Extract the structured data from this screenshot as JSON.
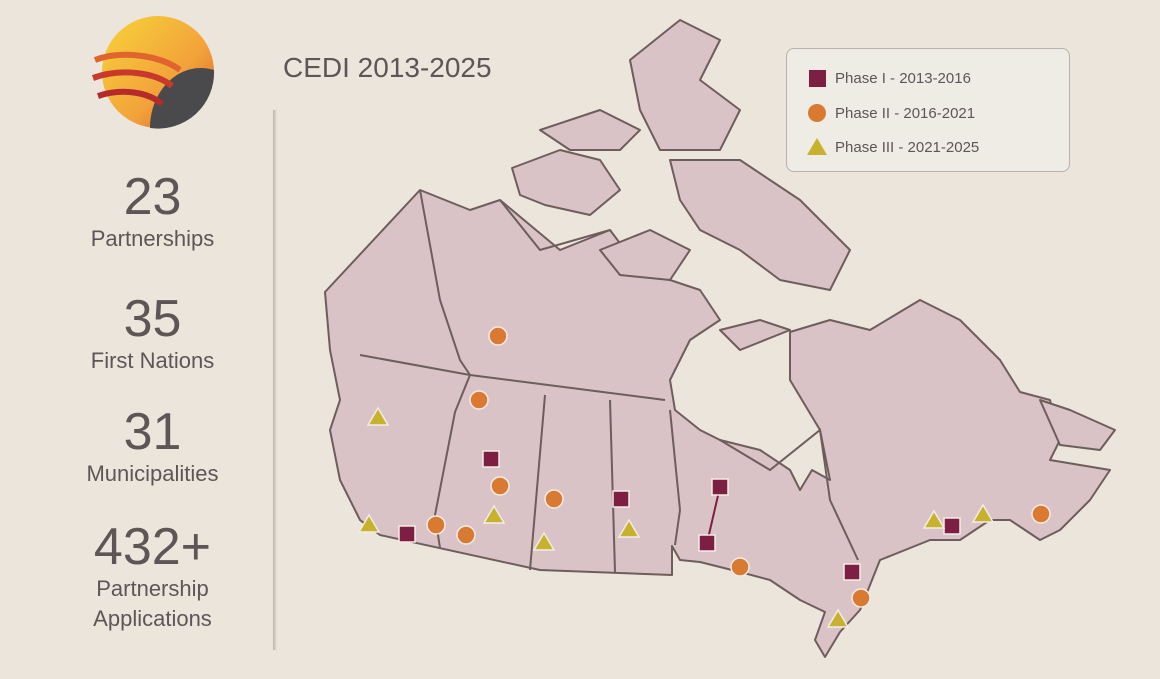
{
  "header": {
    "title": "CEDI 2013-2025"
  },
  "stats": [
    {
      "number": "23",
      "label": "Partnerships"
    },
    {
      "number": "35",
      "label": "First Nations"
    },
    {
      "number": "31",
      "label": "Municipalities"
    },
    {
      "number": "432+",
      "label": "Partnership Applications"
    }
  ],
  "legend": [
    {
      "label": "Phase I - 2013-2016"
    },
    {
      "label": "Phase II - 2016-2021"
    },
    {
      "label": "Phase III - 2021-2025"
    }
  ]
}
